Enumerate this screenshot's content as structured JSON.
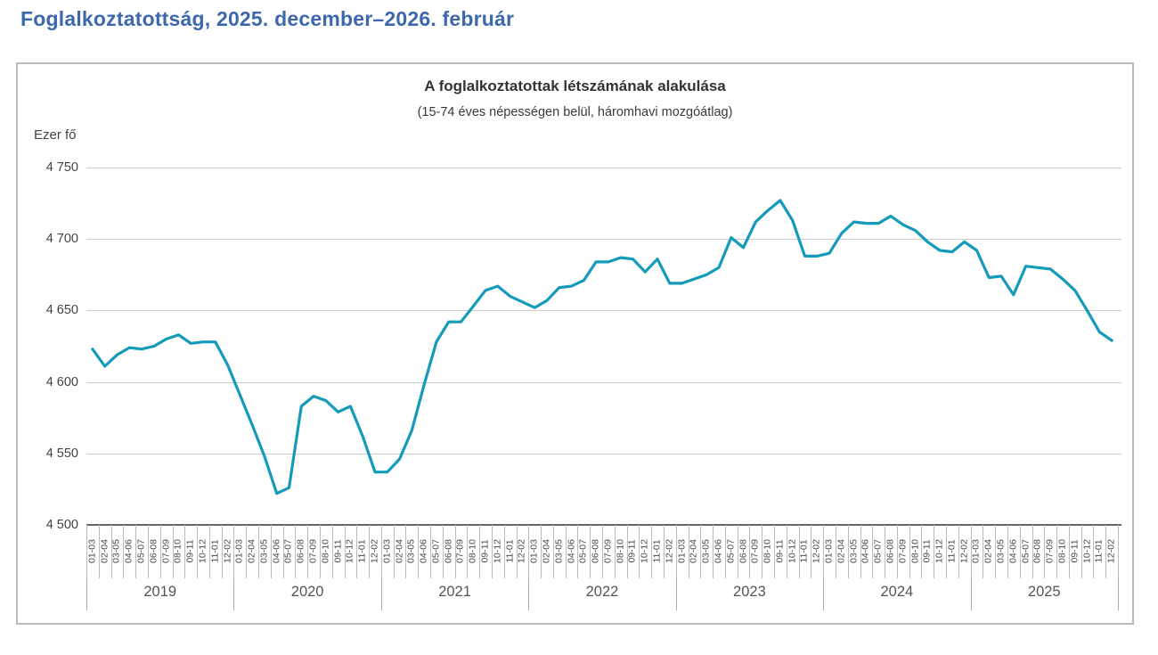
{
  "page": {
    "title": "Foglalkoztatottság, 2025. december–2026. február"
  },
  "chart_data": {
    "type": "line",
    "title": "A foglalkoztatottak létszámának alakulása",
    "subtitle": "(15-74 éves népességen belül, háromhavi mozgóátlag)",
    "unit_label": "Ezer fő",
    "ylim": [
      4500,
      4750
    ],
    "yticks": [
      4750,
      4700,
      4650,
      4600,
      4550,
      4500
    ],
    "grid": true,
    "legend": "none",
    "line_color": "#149bb9",
    "years": [
      "2019",
      "2020",
      "2021",
      "2022",
      "2023",
      "2024",
      "2025"
    ],
    "period_labels": [
      "01-03",
      "02-04",
      "03-05",
      "04-06",
      "05-07",
      "06-08",
      "07-09",
      "08-10",
      "09-11",
      "10-12",
      "11-01",
      "12-02"
    ],
    "values": [
      4623,
      4611,
      4619,
      4624,
      4623,
      4625,
      4630,
      4633,
      4627,
      4628,
      4628,
      4612,
      4591,
      4570,
      4548,
      4522,
      4526,
      4583,
      4590,
      4587,
      4579,
      4583,
      4562,
      4537,
      4537,
      4546,
      4566,
      4598,
      4628,
      4642,
      4642,
      4653,
      4664,
      4667,
      4660,
      4656,
      4652,
      4657,
      4666,
      4667,
      4671,
      4684,
      4684,
      4687,
      4686,
      4677,
      4686,
      4669,
      4669,
      4672,
      4675,
      4680,
      4701,
      4694,
      4712,
      4720,
      4727,
      4713,
      4688,
      4688,
      4690,
      4704,
      4712,
      4711,
      4711,
      4716,
      4710,
      4706,
      4698,
      4692,
      4691,
      4698,
      4692,
      4673,
      4674,
      4661,
      4681,
      4680,
      4679,
      4672,
      4664,
      4650,
      4635,
      4629
    ]
  },
  "colors": {
    "page_title": "#3e68ae",
    "line": "#149bb9",
    "grid": "#cccccc",
    "axis": "#666666",
    "tick_text": "#444444",
    "xlabel_text": "#4a4a4a"
  }
}
